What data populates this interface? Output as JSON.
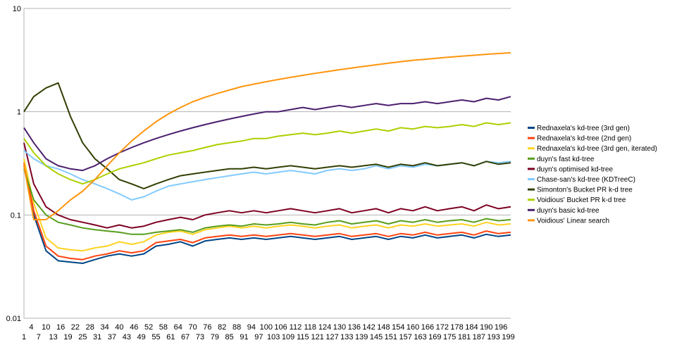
{
  "chart_data": {
    "type": "line",
    "title": "",
    "xlabel": "",
    "ylabel": "",
    "y_scale": "log",
    "ylim": [
      0.01,
      10
    ],
    "xlim": [
      1,
      200
    ],
    "grid": "horizontal major",
    "legend_position": "right",
    "y_tick_labels": [
      "10",
      "1",
      "0.1",
      "0.01"
    ],
    "x_tick_labels_upper": [
      "4",
      "10",
      "16",
      "22",
      "28",
      "34",
      "40",
      "46",
      "52",
      "58",
      "64",
      "70",
      "76",
      "82",
      "88",
      "94",
      "100",
      "106",
      "112",
      "118",
      "124",
      "130",
      "136",
      "142",
      "148",
      "154",
      "160",
      "166",
      "172",
      "178",
      "184",
      "190",
      "196"
    ],
    "x_tick_labels_lower": [
      "1",
      "7",
      "13",
      "19",
      "25",
      "31",
      "37",
      "43",
      "49",
      "55",
      "61",
      "67",
      "73",
      "79",
      "85",
      "91",
      "97",
      "103",
      "109",
      "115",
      "121",
      "127",
      "133",
      "139",
      "145",
      "151",
      "157",
      "163",
      "169",
      "175",
      "181",
      "187",
      "193",
      "199"
    ],
    "x": [
      1,
      5,
      10,
      15,
      20,
      25,
      30,
      35,
      40,
      45,
      50,
      55,
      60,
      65,
      70,
      75,
      80,
      85,
      90,
      95,
      100,
      105,
      110,
      115,
      120,
      125,
      130,
      135,
      140,
      145,
      150,
      155,
      160,
      165,
      170,
      175,
      180,
      185,
      190,
      195,
      200
    ],
    "series": [
      {
        "name": "Rednaxela's kd-tree (3rd gen)",
        "color": "#004586",
        "values": [
          0.3,
          0.1,
          0.045,
          0.036,
          0.035,
          0.034,
          0.037,
          0.04,
          0.042,
          0.04,
          0.042,
          0.05,
          0.052,
          0.055,
          0.05,
          0.056,
          0.058,
          0.06,
          0.058,
          0.06,
          0.058,
          0.06,
          0.062,
          0.06,
          0.058,
          0.06,
          0.062,
          0.058,
          0.06,
          0.062,
          0.058,
          0.062,
          0.06,
          0.064,
          0.06,
          0.062,
          0.064,
          0.06,
          0.065,
          0.062,
          0.064
        ]
      },
      {
        "name": "Rednaxela's kd-tree (2nd gen)",
        "color": "#ff420e",
        "values": [
          0.32,
          0.11,
          0.05,
          0.04,
          0.038,
          0.037,
          0.04,
          0.042,
          0.045,
          0.043,
          0.045,
          0.054,
          0.056,
          0.058,
          0.054,
          0.06,
          0.062,
          0.064,
          0.062,
          0.064,
          0.062,
          0.064,
          0.066,
          0.064,
          0.062,
          0.064,
          0.066,
          0.062,
          0.064,
          0.066,
          0.062,
          0.066,
          0.064,
          0.068,
          0.064,
          0.066,
          0.068,
          0.064,
          0.07,
          0.066,
          0.068
        ]
      },
      {
        "name": "Rednaxela's kd-tree (3rd gen, iterated)",
        "color": "#ffd320",
        "values": [
          0.35,
          0.13,
          0.06,
          0.048,
          0.046,
          0.045,
          0.048,
          0.05,
          0.055,
          0.052,
          0.055,
          0.064,
          0.068,
          0.07,
          0.065,
          0.072,
          0.075,
          0.078,
          0.075,
          0.078,
          0.075,
          0.078,
          0.08,
          0.078,
          0.075,
          0.078,
          0.08,
          0.075,
          0.078,
          0.08,
          0.075,
          0.08,
          0.078,
          0.082,
          0.078,
          0.08,
          0.082,
          0.078,
          0.085,
          0.08,
          0.082
        ]
      },
      {
        "name": "duyn's fast kd-tree",
        "color": "#579d1c",
        "values": [
          0.28,
          0.14,
          0.1,
          0.085,
          0.08,
          0.075,
          0.072,
          0.07,
          0.068,
          0.065,
          0.065,
          0.068,
          0.07,
          0.072,
          0.068,
          0.075,
          0.078,
          0.08,
          0.078,
          0.082,
          0.08,
          0.082,
          0.085,
          0.082,
          0.08,
          0.085,
          0.088,
          0.082,
          0.085,
          0.088,
          0.082,
          0.088,
          0.085,
          0.09,
          0.085,
          0.088,
          0.09,
          0.085,
          0.092,
          0.088,
          0.09
        ]
      },
      {
        "name": "duyn's optimised kd-tree",
        "color": "#7e0021",
        "values": [
          0.5,
          0.2,
          0.12,
          0.1,
          0.09,
          0.085,
          0.08,
          0.075,
          0.08,
          0.075,
          0.078,
          0.085,
          0.09,
          0.095,
          0.09,
          0.1,
          0.105,
          0.11,
          0.105,
          0.11,
          0.105,
          0.11,
          0.115,
          0.11,
          0.105,
          0.11,
          0.115,
          0.105,
          0.11,
          0.115,
          0.105,
          0.115,
          0.11,
          0.12,
          0.11,
          0.115,
          0.12,
          0.11,
          0.125,
          0.115,
          0.12
        ]
      },
      {
        "name": "Chase-san's kd-tree (KDTreeC)",
        "color": "#83caff",
        "values": [
          0.42,
          0.35,
          0.3,
          0.28,
          0.25,
          0.22,
          0.2,
          0.18,
          0.16,
          0.14,
          0.15,
          0.17,
          0.19,
          0.2,
          0.21,
          0.22,
          0.23,
          0.24,
          0.25,
          0.26,
          0.25,
          0.26,
          0.27,
          0.26,
          0.25,
          0.27,
          0.28,
          0.27,
          0.28,
          0.3,
          0.28,
          0.3,
          0.29,
          0.31,
          0.3,
          0.31,
          0.32,
          0.3,
          0.33,
          0.32,
          0.33
        ]
      },
      {
        "name": "Simonton's Bucket PR k-d tree",
        "color": "#314004",
        "values": [
          1.0,
          1.4,
          1.7,
          1.9,
          0.9,
          0.5,
          0.35,
          0.28,
          0.22,
          0.2,
          0.18,
          0.2,
          0.22,
          0.24,
          0.25,
          0.26,
          0.27,
          0.28,
          0.28,
          0.29,
          0.28,
          0.29,
          0.3,
          0.29,
          0.28,
          0.29,
          0.3,
          0.29,
          0.3,
          0.31,
          0.29,
          0.31,
          0.3,
          0.32,
          0.3,
          0.31,
          0.32,
          0.3,
          0.33,
          0.31,
          0.32
        ]
      },
      {
        "name": "Voidious' Bucket PR k-d tree",
        "color": "#aecf00",
        "values": [
          0.55,
          0.4,
          0.3,
          0.25,
          0.22,
          0.2,
          0.22,
          0.25,
          0.28,
          0.3,
          0.32,
          0.35,
          0.38,
          0.4,
          0.42,
          0.45,
          0.48,
          0.5,
          0.52,
          0.55,
          0.55,
          0.58,
          0.6,
          0.62,
          0.6,
          0.62,
          0.65,
          0.62,
          0.65,
          0.68,
          0.65,
          0.7,
          0.68,
          0.72,
          0.7,
          0.72,
          0.75,
          0.72,
          0.78,
          0.75,
          0.78
        ]
      },
      {
        "name": "duyn's basic kd-tree",
        "color": "#4b1f6f",
        "values": [
          0.7,
          0.5,
          0.35,
          0.3,
          0.28,
          0.27,
          0.3,
          0.35,
          0.4,
          0.45,
          0.5,
          0.55,
          0.6,
          0.65,
          0.7,
          0.75,
          0.8,
          0.85,
          0.9,
          0.95,
          1.0,
          1.0,
          1.05,
          1.1,
          1.05,
          1.1,
          1.15,
          1.1,
          1.15,
          1.2,
          1.15,
          1.2,
          1.2,
          1.25,
          1.2,
          1.25,
          1.3,
          1.25,
          1.35,
          1.3,
          1.4
        ]
      },
      {
        "name": "Voidious' Linear search",
        "color": "#ff950e",
        "values": [
          0.3,
          0.09,
          0.09,
          0.11,
          0.14,
          0.17,
          0.22,
          0.3,
          0.4,
          0.52,
          0.65,
          0.8,
          0.95,
          1.1,
          1.25,
          1.38,
          1.5,
          1.62,
          1.75,
          1.85,
          1.95,
          2.05,
          2.15,
          2.25,
          2.35,
          2.45,
          2.55,
          2.65,
          2.75,
          2.85,
          2.95,
          3.05,
          3.15,
          3.22,
          3.3,
          3.38,
          3.45,
          3.52,
          3.6,
          3.66,
          3.72
        ]
      }
    ]
  }
}
